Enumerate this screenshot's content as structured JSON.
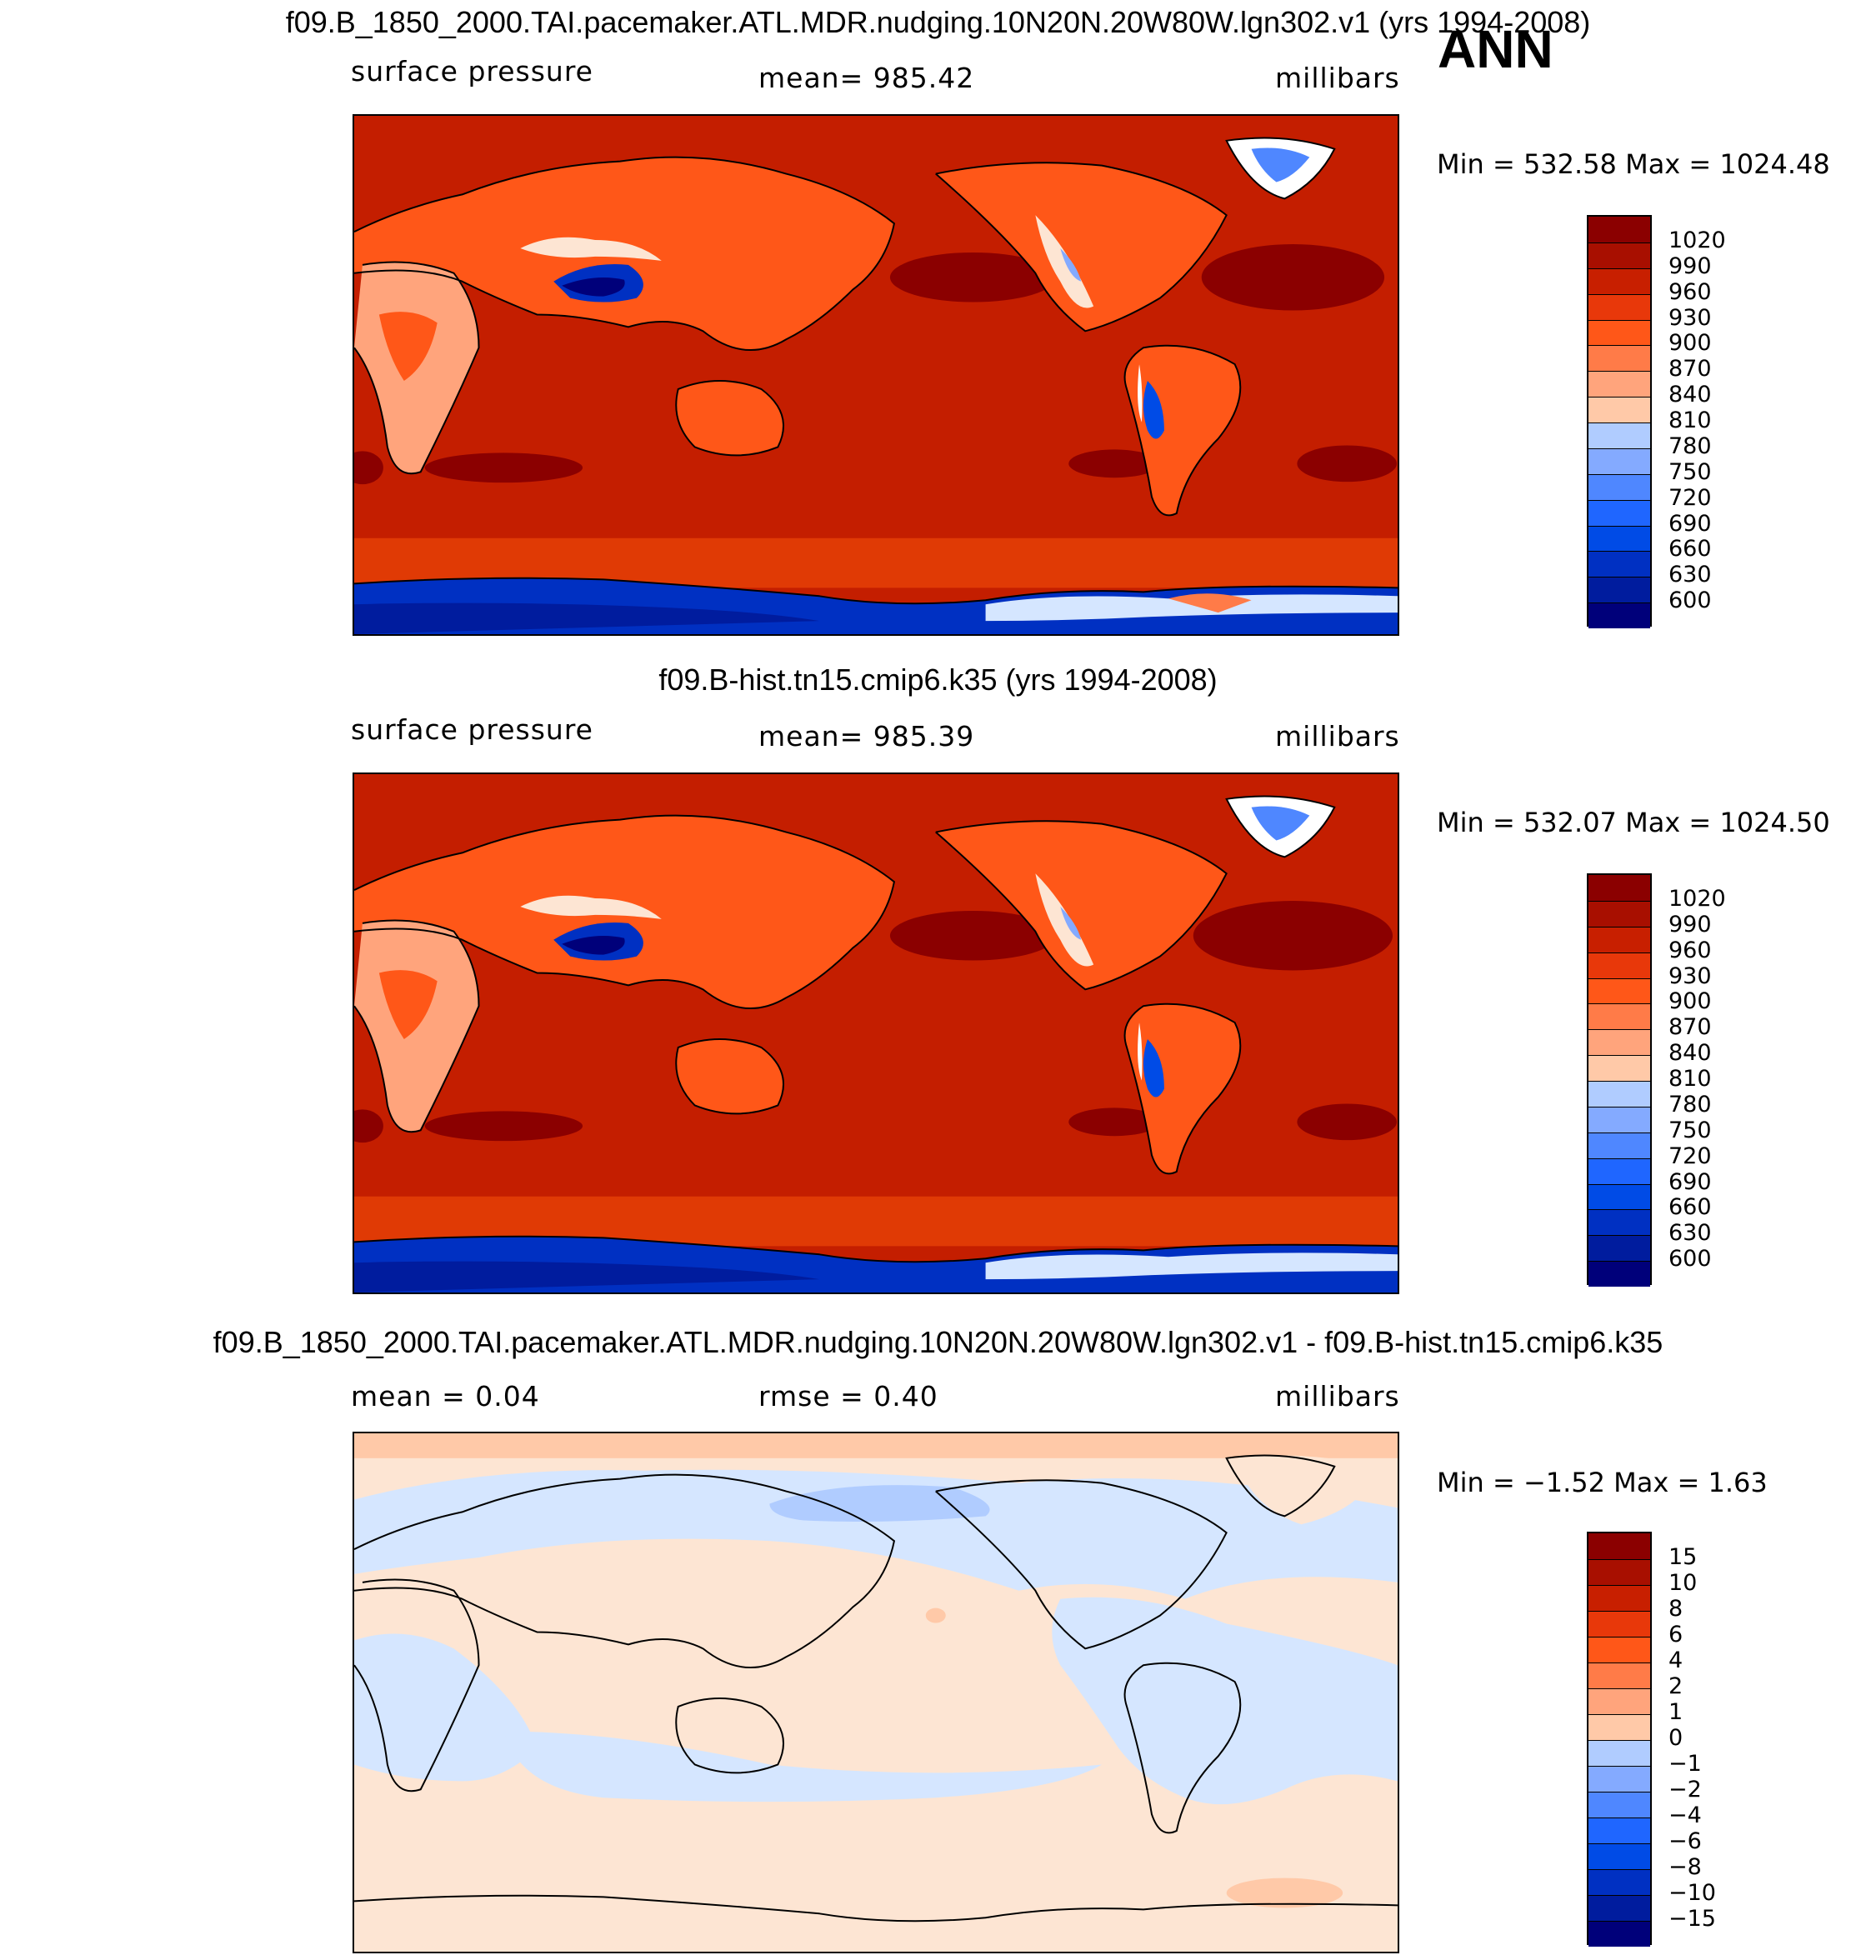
{
  "season": "ANN",
  "colors": {
    "abs": [
      "#00007a",
      "#001c9e",
      "#0030c2",
      "#004be6",
      "#1f66ff",
      "#4f87ff",
      "#84aaff",
      "#b0ccff",
      "#d5e6ff",
      "#fde5d3",
      "#ffc9a8",
      "#ffa47c",
      "#ff7b48",
      "#ff5718",
      "#e8380a",
      "#c81f00",
      "#a80f00",
      "#8b0000"
    ],
    "diff": [
      "#00007a",
      "#001c9e",
      "#0030c2",
      "#004be6",
      "#1f66ff",
      "#4f87ff",
      "#84aaff",
      "#b0ccff",
      "#d5e6ff",
      "#fde5d3",
      "#ffc9a8",
      "#ffa47c",
      "#ff7b48",
      "#ff5718",
      "#e8380a",
      "#c81f00",
      "#a80f00",
      "#8b0000"
    ]
  },
  "panels": [
    {
      "title": "f09.B_1850_2000.TAI.pacemaker.ATL.MDR.nudging.10N20N.20W80W.lgn302.v1 (yrs 1994-2008)",
      "left_label": "surface pressure",
      "mean_label": "mean= 985.42",
      "units": "millibars",
      "min_max": "Min = 532.58 Max = 1024.48",
      "colorbar_ticks": [
        "1020",
        "990",
        "960",
        "930",
        "900",
        "870",
        "840",
        "810",
        "780",
        "750",
        "720",
        "690",
        "660",
        "630",
        "600"
      ]
    },
    {
      "title": "f09.B-hist.tn15.cmip6.k35 (yrs 1994-2008)",
      "left_label": "surface pressure",
      "mean_label": "mean= 985.39",
      "units": "millibars",
      "min_max": "Min = 532.07 Max = 1024.50",
      "colorbar_ticks": [
        "1020",
        "990",
        "960",
        "930",
        "900",
        "870",
        "840",
        "810",
        "780",
        "750",
        "720",
        "690",
        "660",
        "630",
        "600"
      ]
    },
    {
      "title": "f09.B_1850_2000.TAI.pacemaker.ATL.MDR.nudging.10N20N.20W80W.lgn302.v1 - f09.B-hist.tn15.cmip6.k35",
      "left_label": "mean = 0.04",
      "mean_label": "rmse = 0.40",
      "units": "millibars",
      "min_max": "Min = −1.52 Max = 1.63",
      "colorbar_ticks": [
        "15",
        "10",
        "8",
        "6",
        "4",
        "2",
        "1",
        "0",
        "−1",
        "−2",
        "−4",
        "−6",
        "−8",
        "−10",
        "−15"
      ]
    }
  ]
}
